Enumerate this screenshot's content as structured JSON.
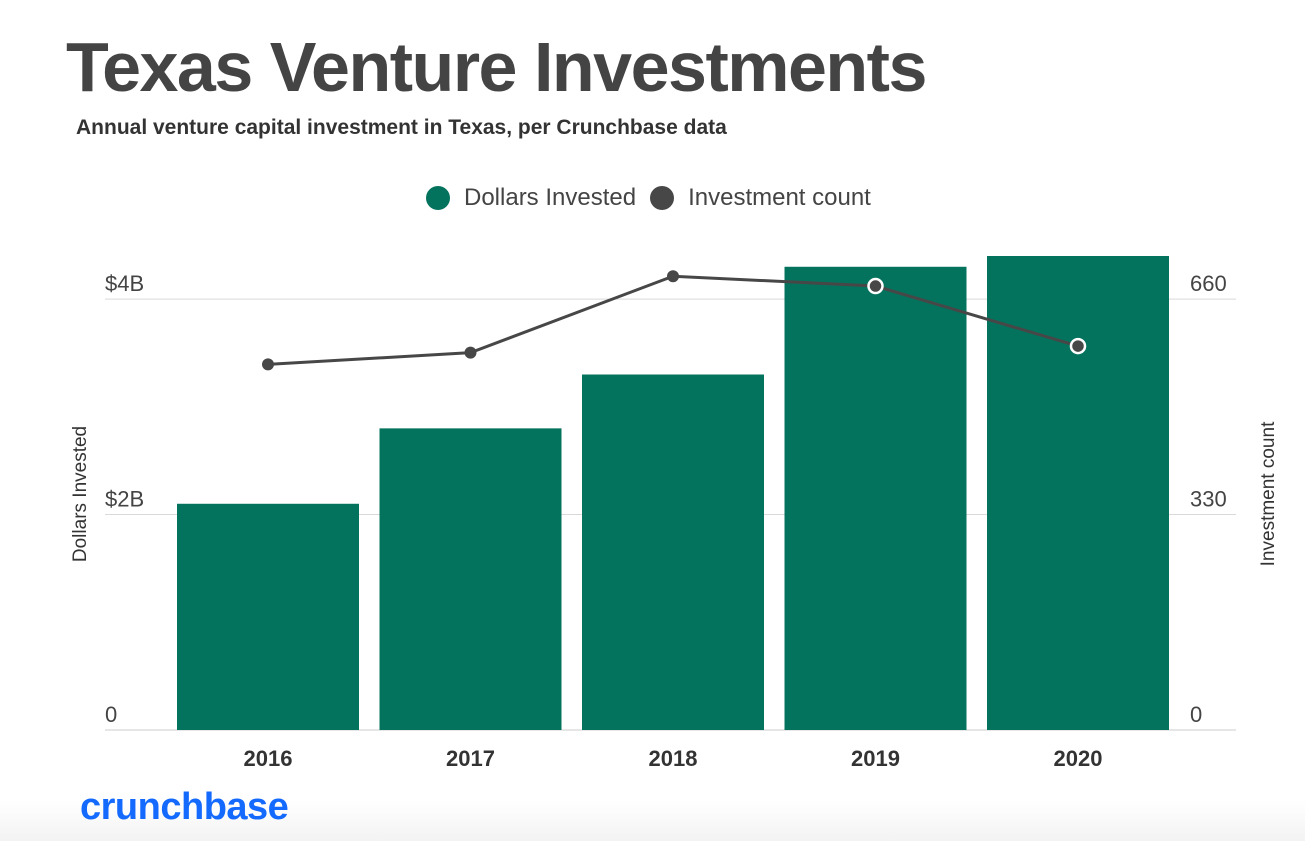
{
  "colors": {
    "bar": "#04735e",
    "line": "#474747",
    "brand": "#146aff",
    "grid": "#d9d9d9",
    "text": "#444444"
  },
  "brand": {
    "name": "crunchbase"
  },
  "chart_data": {
    "type": "bar",
    "title": "Texas Venture Investments",
    "subtitle": "Annual venture capital investment in Texas, per Crunchbase data",
    "categories": [
      "2016",
      "2017",
      "2018",
      "2019",
      "2020"
    ],
    "series": [
      {
        "name": "Dollars Invested",
        "type": "bar",
        "axis": "left",
        "values": [
          2.1,
          2.8,
          3.3,
          4.3,
          4.4
        ]
      },
      {
        "name": "Investment count",
        "type": "line",
        "axis": "right",
        "values": [
          560,
          578,
          695,
          680,
          588
        ]
      }
    ],
    "y_left": {
      "label": "Dollars Invested",
      "min": 0,
      "max": 4.4,
      "ticks": [
        0,
        2,
        4
      ],
      "tick_labels": [
        "0",
        "$2B",
        "$4B"
      ]
    },
    "y_right": {
      "label": "Investment count",
      "min": 0,
      "max": 726,
      "ticks": [
        0,
        330,
        660
      ],
      "tick_labels": [
        "0",
        "330",
        "660"
      ]
    },
    "legend": "top-center",
    "grid": true
  }
}
